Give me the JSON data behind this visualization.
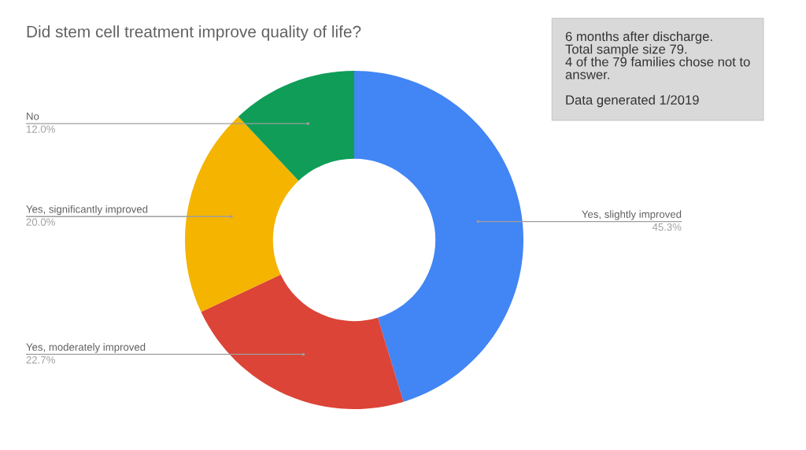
{
  "chart_data": {
    "type": "donut",
    "title": "Did stem cell treatment improve quality of life?",
    "categories": [
      "Yes, slightly improved",
      "Yes, moderately improved",
      "Yes, significantly improved",
      "No"
    ],
    "values": [
      45.3,
      22.7,
      20.0,
      12.0
    ],
    "colors": [
      "#4285f4",
      "#db4437",
      "#f4b400",
      "#0f9d58"
    ],
    "value_labels": [
      "45.3%",
      "22.7%",
      "20.0%",
      "12.0%"
    ],
    "annotations": [
      "6 months after discharge.\nTotal sample size 79.\n4 of the 79 families chose not to\nanswer.\n\nData generated 1/2019"
    ]
  }
}
